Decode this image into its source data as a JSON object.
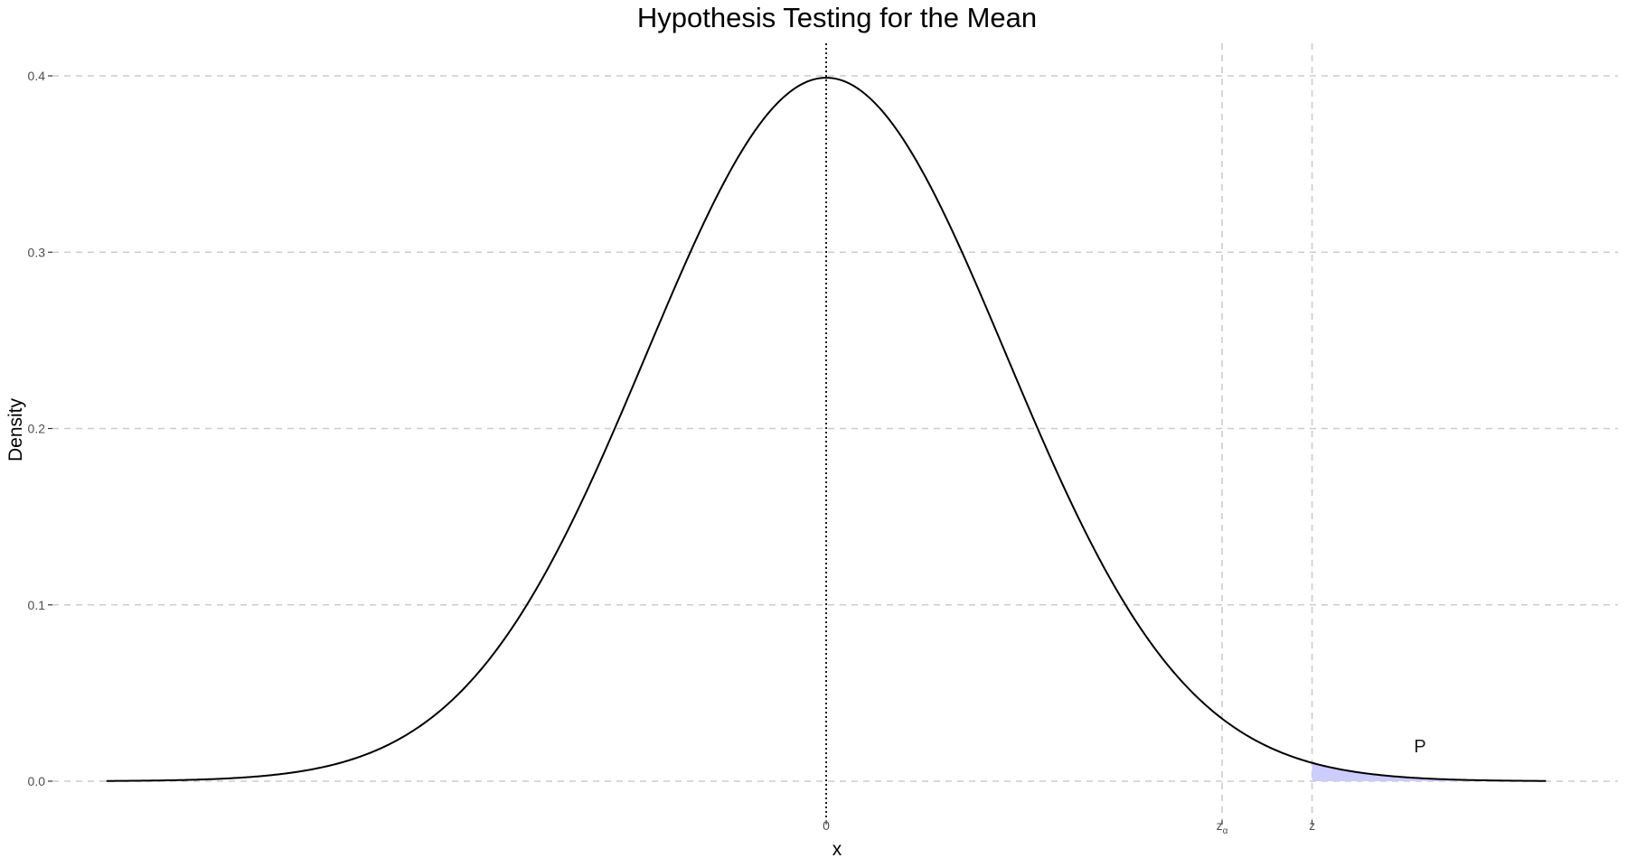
{
  "chart_data": {
    "type": "area",
    "title": "Hypothesis Testing for the Mean",
    "xlabel": "x",
    "ylabel": "Density",
    "distribution": "standard normal",
    "xlim": [
      -4.3,
      4.4
    ],
    "ylim": [
      0,
      0.4
    ],
    "curve_range": [
      -4,
      4
    ],
    "x_ticks": [
      {
        "value": 0,
        "label": "0"
      },
      {
        "value": 2.2,
        "label": "z",
        "subscript": "α"
      },
      {
        "value": 2.7,
        "label": "z",
        "subscript": ""
      }
    ],
    "y_ticks": [
      {
        "value": 0.0,
        "label": "0.0"
      },
      {
        "value": 0.1,
        "label": "0.1"
      },
      {
        "value": 0.2,
        "label": "0.2"
      },
      {
        "value": 0.3,
        "label": "0.3"
      },
      {
        "value": 0.4,
        "label": "0.4"
      }
    ],
    "vertical_lines": [
      {
        "x": 0,
        "style": "dotted"
      },
      {
        "x": 2.2,
        "style": "dashed"
      },
      {
        "x": 2.7,
        "style": "dashed"
      }
    ],
    "shaded_region": {
      "from": 2.7,
      "to": 4,
      "label": "P",
      "label_x": 3.3,
      "label_y": 0.02
    },
    "grid": "horizontal dashed",
    "colors": {
      "curve": "#000000",
      "shade": "#ccccff",
      "grid": "#cccccc",
      "title": "#000000"
    }
  }
}
